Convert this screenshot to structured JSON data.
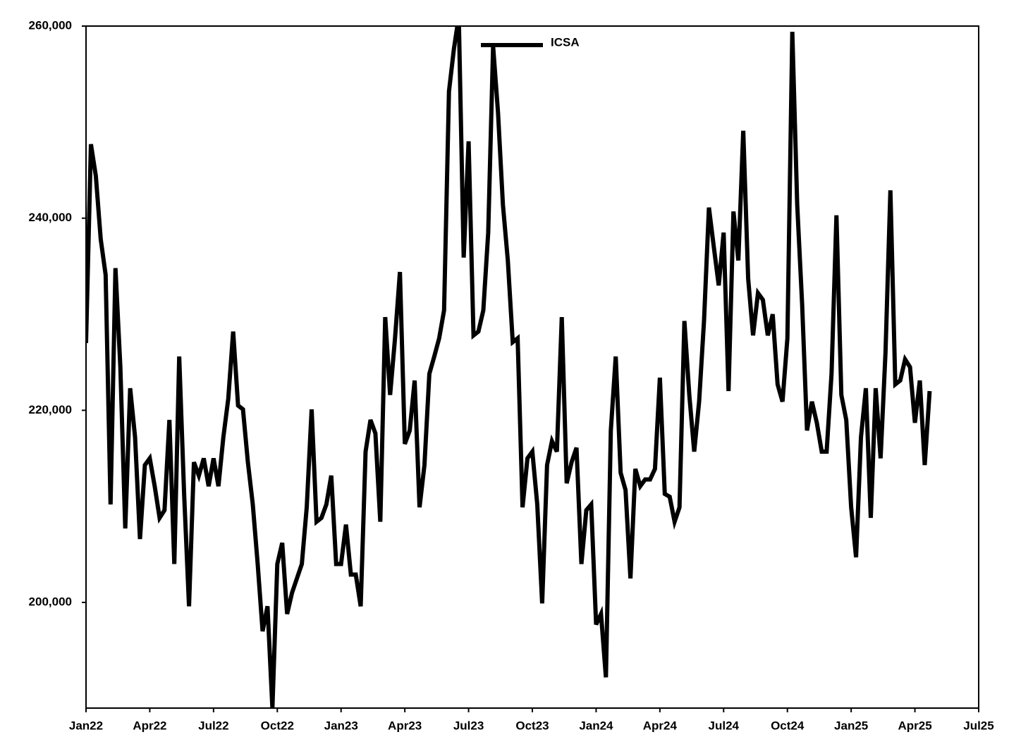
{
  "chart_data": {
    "type": "line",
    "x": [
      0,
      1,
      2,
      3,
      4,
      5,
      6,
      7,
      8,
      9,
      10,
      11,
      12,
      13,
      14,
      15,
      16,
      17,
      18,
      19,
      20,
      21,
      22,
      23,
      24,
      25,
      26,
      27,
      28,
      29,
      30,
      31,
      32,
      33,
      34,
      35,
      36,
      37,
      38,
      39,
      40,
      41,
      42,
      43,
      44,
      45,
      46,
      47,
      48,
      49,
      50,
      51,
      52,
      53,
      54,
      55,
      56,
      57,
      58,
      59,
      60,
      61,
      62,
      63,
      64,
      65,
      66,
      67,
      68,
      69,
      70,
      71,
      72,
      73,
      74,
      75,
      76,
      77,
      78,
      79,
      80,
      81,
      82,
      83,
      84,
      85,
      86,
      87,
      88,
      89,
      90,
      91,
      92,
      93,
      94,
      95,
      96,
      97,
      98,
      99,
      100,
      101,
      102,
      103,
      104,
      105,
      106,
      107,
      108,
      109,
      110,
      111,
      112,
      113,
      114,
      115,
      116,
      117,
      118,
      119,
      120,
      121,
      122,
      123,
      124,
      125,
      126,
      127,
      128,
      129,
      130,
      131,
      132,
      133,
      134,
      135,
      136,
      137,
      138,
      139,
      140,
      141,
      142,
      143,
      144,
      145,
      146,
      147,
      148,
      149,
      150,
      151,
      152,
      153,
      154,
      155,
      156,
      157,
      158,
      159,
      160,
      161,
      162,
      163,
      164,
      165,
      166,
      167,
      168,
      169,
      170,
      171,
      172
    ],
    "series": [
      {
        "name": "ICSA",
        "color": "#000000",
        "values": [
          227000,
          247700,
          244400,
          237800,
          234100,
          210200,
          234800,
          224500,
          207700,
          222300,
          217200,
          206600,
          214300,
          215000,
          212100,
          208800,
          209600,
          219000,
          204000,
          225600,
          211300,
          199600,
          214600,
          213200,
          215000,
          212100,
          215000,
          212100,
          217200,
          221200,
          228200,
          220500,
          220100,
          214600,
          210200,
          204000,
          197000,
          199600,
          189000,
          204000,
          206200,
          198800,
          201000,
          202500,
          204000,
          209900,
          220100,
          208400,
          208800,
          210200,
          213200,
          204000,
          204000,
          208100,
          202900,
          202900,
          199600,
          215700,
          219000,
          217600,
          208400,
          229700,
          221600,
          227500,
          234400,
          216500,
          217900,
          223100,
          209900,
          214300,
          223800,
          225600,
          227500,
          230400,
          253200,
          257600,
          261000,
          235900,
          248000,
          227800,
          228200,
          230400,
          238500,
          257900,
          251000,
          241400,
          235600,
          227100,
          227500,
          209900,
          215000,
          215700,
          210200,
          199900,
          214300,
          216800,
          215700,
          229700,
          212400,
          214600,
          216100,
          204000,
          209600,
          210200,
          197700,
          198800,
          192200,
          217900,
          225600,
          213500,
          211700,
          202500,
          213900,
          212100,
          212800,
          212800,
          213900,
          223400,
          211300,
          211000,
          208400,
          209900,
          229300,
          221600,
          215700,
          220900,
          229300,
          241100,
          237000,
          233000,
          238500,
          222000,
          240700,
          235600,
          249100,
          233700,
          227800,
          232200,
          231500,
          227800,
          230000,
          222700,
          220900,
          227500,
          259400,
          241400,
          231100,
          217900,
          220900,
          218700,
          215700,
          215700,
          223800,
          240300,
          221600,
          219000,
          209900,
          204700,
          217200,
          222300,
          208800,
          222300,
          215000,
          226000,
          242900,
          222700,
          223100,
          225300,
          224500,
          218700,
          223100,
          214300,
          222000
        ]
      }
    ],
    "xlim": [
      0,
      182
    ],
    "xticks": [
      {
        "value": 0,
        "label": "Jan22"
      },
      {
        "value": 13,
        "label": "Apr22"
      },
      {
        "value": 26,
        "label": "Jul22"
      },
      {
        "value": 39,
        "label": "Oct22"
      },
      {
        "value": 52,
        "label": "Jan23"
      },
      {
        "value": 65,
        "label": "Apr23"
      },
      {
        "value": 78,
        "label": "Jul23"
      },
      {
        "value": 91,
        "label": "Oct23"
      },
      {
        "value": 104,
        "label": "Jan24"
      },
      {
        "value": 117,
        "label": "Apr24"
      },
      {
        "value": 130,
        "label": "Jul24"
      },
      {
        "value": 143,
        "label": "Oct24"
      },
      {
        "value": 156,
        "label": "Jan25"
      },
      {
        "value": 169,
        "label": "Apr25"
      },
      {
        "value": 182,
        "label": "Jul25"
      }
    ],
    "ylim": [
      189000,
      260000
    ],
    "yticks": [
      {
        "value": 200000,
        "label": "200,000"
      },
      {
        "value": 220000,
        "label": "220,000"
      },
      {
        "value": 240000,
        "label": "240,000"
      },
      {
        "value": 260000,
        "label": "260,000"
      }
    ],
    "legend": "top"
  }
}
